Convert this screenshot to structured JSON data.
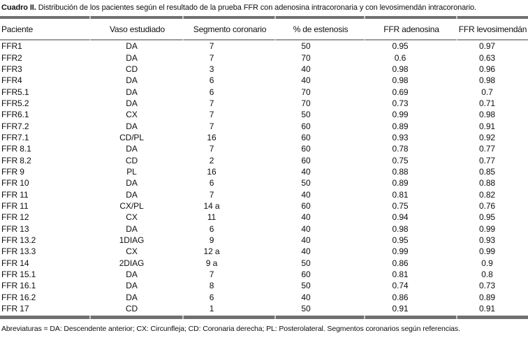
{
  "title": {
    "label": "Cuadro II.",
    "text": "Distribución de los pacientes según el resultado de la prueba FFR con adenosina intracoronaria y con levosimendán intracoronario."
  },
  "table": {
    "columns": [
      "Paciente",
      "Vaso estudiado",
      "Segmento coronario",
      "% de estenosis",
      "FFR adenosina",
      "FFR levosimendán"
    ],
    "rows": [
      [
        "FFR1",
        "DA",
        "7",
        "50",
        "0.95",
        "0.97"
      ],
      [
        "FFR2",
        "DA",
        "7",
        "70",
        "0.6",
        "0.63"
      ],
      [
        "FFR3",
        "CD",
        "3",
        "40",
        "0.98",
        "0.96"
      ],
      [
        "FFR4",
        "DA",
        "6",
        "40",
        "0.98",
        "0.98"
      ],
      [
        "FFR5.1",
        "DA",
        "6",
        "70",
        "0.69",
        "0.7"
      ],
      [
        "FFR5.2",
        "DA",
        "7",
        "70",
        "0.73",
        "0.71"
      ],
      [
        "FFR6.1",
        "CX",
        "7",
        "50",
        "0.99",
        "0.98"
      ],
      [
        "FFR7.2",
        "DA",
        "7",
        "60",
        "0.89",
        "0.91"
      ],
      [
        "FFR7.1",
        "CD/PL",
        "16",
        "60",
        "0.93",
        "0.92"
      ],
      [
        "FFR 8.1",
        "DA",
        "7",
        "60",
        "0.78",
        "0.77"
      ],
      [
        "FFR 8.2",
        "CD",
        "2",
        "60",
        "0.75",
        "0.77"
      ],
      [
        "FFR 9",
        "PL",
        "16",
        "40",
        "0.88",
        "0.85"
      ],
      [
        "FFR 10",
        "DA",
        "6",
        "50",
        "0.89",
        "0.88"
      ],
      [
        "FFR 11",
        "DA",
        "7",
        "40",
        "0.81",
        "0.82"
      ],
      [
        "FFR 11",
        "CX/PL",
        "14 a",
        "60",
        "0.75",
        "0.76"
      ],
      [
        "FFR 12",
        "CX",
        "11",
        "40",
        "0.94",
        "0.95"
      ],
      [
        "FFR 13",
        "DA",
        "6",
        "40",
        "0.98",
        "0.99"
      ],
      [
        "FFR 13.2",
        "1DIAG",
        "9",
        "40",
        "0.95",
        "0.93"
      ],
      [
        "FFR 13.3",
        "CX",
        "12 a",
        "40",
        "0.99",
        "0.99"
      ],
      [
        "FFR 14",
        "2DIAG",
        "9 a",
        "50",
        "0.86",
        "0.9"
      ],
      [
        "FFR 15.1",
        "DA",
        "7",
        "60",
        "0.81",
        "0.8"
      ],
      [
        "FFR 16.1",
        "DA",
        "8",
        "50",
        "0.74",
        "0.73"
      ],
      [
        "FFR 16.2",
        "DA",
        "6",
        "40",
        "0.86",
        "0.89"
      ],
      [
        "FFR 17",
        "CD",
        "1",
        "50",
        "0.91",
        "0.91"
      ]
    ]
  },
  "footnote": "Abreviaturas = DA: Descendente anterior; CX: Circunfleja; CD: Coronaria derecha; PL: Posterolateral. Segmentos coronarios según referencias."
}
